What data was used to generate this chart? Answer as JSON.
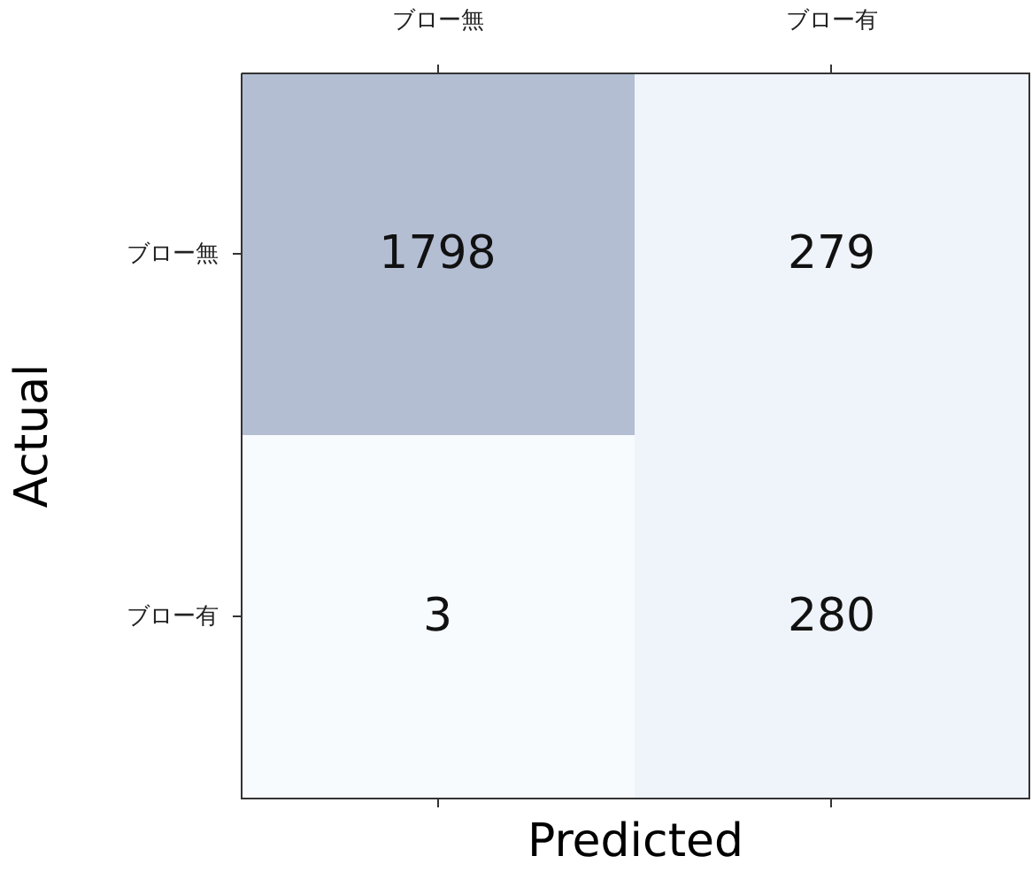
{
  "chart_data": {
    "type": "heatmap",
    "xlabel": "Predicted",
    "ylabel": "Actual",
    "categories": [
      "ブロー無",
      "ブロー有"
    ],
    "y_categories": [
      "ブロー無",
      "ブロー有"
    ],
    "cells": [
      [
        1798,
        279
      ],
      [
        3,
        280
      ]
    ],
    "colors": [
      "#b3bed3",
      "#eff3fa",
      "#f8fbfe",
      "#eff3fa"
    ],
    "data_labels": true
  }
}
